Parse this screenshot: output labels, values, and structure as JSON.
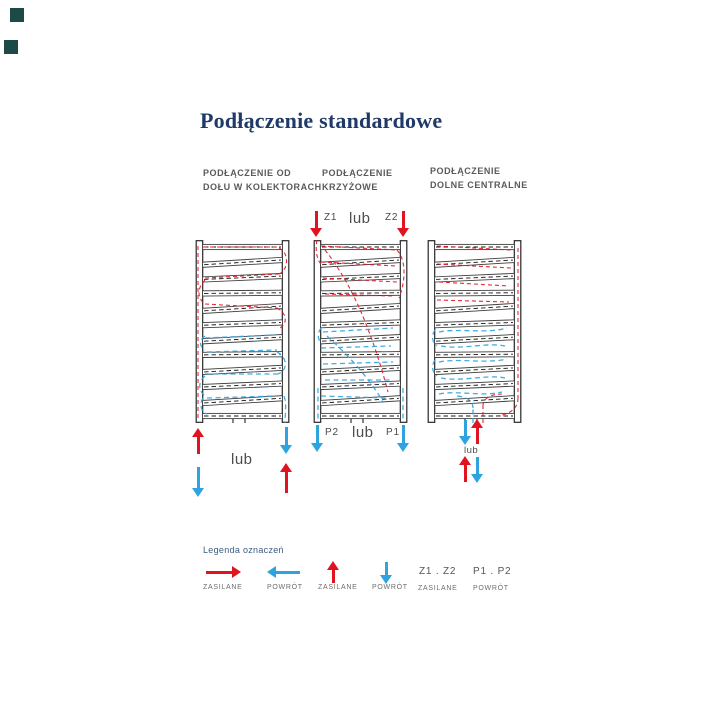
{
  "title": "Podłączenie standardowe",
  "columns": [
    {
      "header": [
        "PODŁĄCZENIE OD",
        "DOŁU W KOLEKTORACH"
      ],
      "or_bottom": "lub"
    },
    {
      "header": [
        "PODŁĄCZENIE",
        "KRZYŻOWE"
      ],
      "top": {
        "left_label": "Z1",
        "or": "lub",
        "right_label": "Z2"
      },
      "bottom": {
        "left_label": "P2",
        "or": "lub",
        "right_label": "P1"
      }
    },
    {
      "header": [
        "PODŁĄCZENIE",
        "DOLNE CENTRALNE"
      ],
      "or_center": "lub"
    }
  ],
  "legend": {
    "title": "Legenda oznaczeń",
    "items": [
      {
        "icon": "arrow-right-supply",
        "label": "ZASILANE"
      },
      {
        "icon": "arrow-left-return",
        "label": "POWRÓT"
      },
      {
        "icon": "arrow-up-supply",
        "label": "ZASILANE"
      },
      {
        "icon": "arrow-down-return",
        "label": "POWRÓT"
      },
      {
        "text": "Z1 . Z2",
        "label": "ZASILANE"
      },
      {
        "text": "P1 . P2",
        "label": "POWRÓT"
      }
    ]
  },
  "colors": {
    "supply": "#e0141f",
    "return": "#2ea3df",
    "title": "#1f3a68",
    "header_gray": "#5a5a5a",
    "legend_title": "#3c5c82",
    "corner_square": "#1c4a47"
  }
}
